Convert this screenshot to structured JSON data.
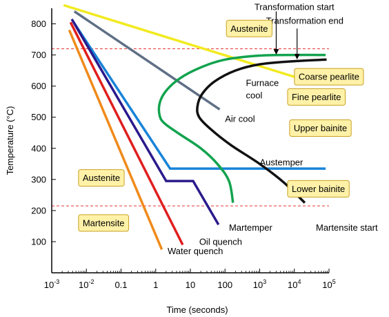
{
  "chart_data": {
    "type": "line",
    "title": "",
    "xlabel": "Time (seconds)",
    "ylabel": "Temperature (°C)",
    "x_scale": "log",
    "xlim": [
      0.001,
      100000
    ],
    "ylim": [
      0,
      850
    ],
    "x_ticks": [
      0.001,
      0.01,
      0.1,
      1,
      10,
      100,
      1000,
      10000,
      100000
    ],
    "x_tick_labels": [
      {
        "base": "10",
        "exp": "-3"
      },
      {
        "base": "10",
        "exp": "-2"
      },
      {
        "base": "0.1",
        "exp": ""
      },
      {
        "base": "1",
        "exp": ""
      },
      {
        "base": "10",
        "exp": ""
      },
      {
        "base": "100",
        "exp": ""
      },
      {
        "base": "10",
        "exp": "3"
      },
      {
        "base": "10",
        "exp": "4"
      },
      {
        "base": "10",
        "exp": "5"
      }
    ],
    "y_ticks": [
      100,
      200,
      300,
      400,
      500,
      600,
      700,
      800
    ],
    "y_tick_labels": [
      "100",
      "200",
      "300",
      "400",
      "500",
      "600",
      "700",
      "800"
    ],
    "reference_lines": [
      {
        "y": 720,
        "color": "#e53030",
        "style": "dashed"
      },
      {
        "y": 215,
        "color": "#e53030",
        "style": "dashed"
      }
    ],
    "series": [
      {
        "label": "",
        "color": "#f2ea1f",
        "points": [
          [
            0.0022,
            860
          ],
          [
            19000,
            620
          ]
        ]
      },
      {
        "label": "Air cool",
        "color": "#5f6f85",
        "points": [
          [
            0.0045,
            840
          ],
          [
            70,
            525
          ]
        ]
      },
      {
        "label": "Austemper",
        "color": "#1883d8",
        "points": [
          [
            0.004,
            810
          ],
          [
            2.6,
            335
          ],
          [
            80000,
            335
          ]
        ]
      },
      {
        "label": "Martemper",
        "color": "#2a1a8c",
        "points": [
          [
            0.0038,
            815
          ],
          [
            2.0,
            295
          ],
          [
            12,
            295
          ],
          [
            65,
            155
          ]
        ]
      },
      {
        "label": "Oil quench",
        "color": "#e01e1e",
        "points": [
          [
            0.0035,
            805
          ],
          [
            6.0,
            90
          ]
        ]
      },
      {
        "label": "Water quench",
        "color": "#f08a1a",
        "points": [
          [
            0.0032,
            780
          ],
          [
            1.5,
            75
          ]
        ]
      }
    ],
    "curves": [
      {
        "label": "Transformation start",
        "color": "#12a34e",
        "points": [
          [
            80000,
            700
          ],
          [
            10000,
            700
          ],
          [
            1000,
            698
          ],
          [
            100,
            685
          ],
          [
            20,
            660
          ],
          [
            5,
            625
          ],
          [
            2,
            585
          ],
          [
            1.3,
            545
          ],
          [
            1.3,
            505
          ],
          [
            1.8,
            480
          ],
          [
            5,
            445
          ],
          [
            20,
            400
          ],
          [
            60,
            350
          ],
          [
            130,
            295
          ],
          [
            170,
            225
          ]
        ]
      },
      {
        "label": "Transformation end",
        "color": "#111111",
        "points": [
          [
            85000,
            685
          ],
          [
            10000,
            680
          ],
          [
            1000,
            670
          ],
          [
            200,
            650
          ],
          [
            50,
            615
          ],
          [
            22,
            575
          ],
          [
            16,
            535
          ],
          [
            18,
            500
          ],
          [
            40,
            460
          ],
          [
            150,
            410
          ],
          [
            1000,
            350
          ],
          [
            5000,
            290
          ],
          [
            20000,
            225
          ]
        ]
      }
    ],
    "annotations": [
      {
        "id": "furnace-cool",
        "lines": [
          "Furnace",
          "cool"
        ],
        "x": 400,
        "y": 600
      },
      {
        "id": "air-cool",
        "lines": [
          "Air cool"
        ],
        "x": 100,
        "y": 485
      },
      {
        "id": "austemper",
        "lines": [
          "Austemper"
        ],
        "x": 1000,
        "y": 345
      },
      {
        "id": "martemper",
        "lines": [
          "Martemper"
        ],
        "x": 130,
        "y": 135
      },
      {
        "id": "oil-quench",
        "lines": [
          "Oil quench"
        ],
        "x": 18,
        "y": 90
      },
      {
        "id": "water-quench",
        "lines": [
          "Water quench"
        ],
        "x": 2.2,
        "y": 60
      },
      {
        "id": "martensite-start",
        "lines": [
          "Martensite start"
        ],
        "x": 80000,
        "y": 135
      },
      {
        "id": "transformation-start",
        "lines": [
          "Transformation start"
        ],
        "x": 10000,
        "y": 845
      },
      {
        "id": "transformation-end",
        "lines": [
          "Transformation end"
        ],
        "x": 20000,
        "y": 800
      }
    ],
    "arrows": [
      {
        "id": "arrow-transformation-start",
        "from": [
          3000,
          840
        ],
        "to": [
          3000,
          712
        ]
      },
      {
        "id": "arrow-transformation-end",
        "from": [
          12000,
          785
        ],
        "to": [
          12000,
          697
        ]
      }
    ],
    "boxes": [
      {
        "id": "box-austenite-top",
        "text": "Austenite",
        "x": 120,
        "y": 785
      },
      {
        "id": "box-coarse-pearlite",
        "text": "Coarse pearlite",
        "x": 11000,
        "y": 630
      },
      {
        "id": "box-fine-pearlite",
        "text": "Fine pearlite",
        "x": 7000,
        "y": 565
      },
      {
        "id": "box-upper-bainite",
        "text": "Upper bainite",
        "x": 8000,
        "y": 465
      },
      {
        "id": "box-lower-bainite",
        "text": "Lower bainite",
        "x": 7000,
        "y": 270
      },
      {
        "id": "box-austenite-left",
        "text": "Austenite",
        "x": 0.0065,
        "y": 305
      },
      {
        "id": "box-martensite",
        "text": "Martensite",
        "x": 0.0065,
        "y": 160
      }
    ],
    "box_fill": "#fff2a8",
    "box_stroke": "#c8a020"
  }
}
